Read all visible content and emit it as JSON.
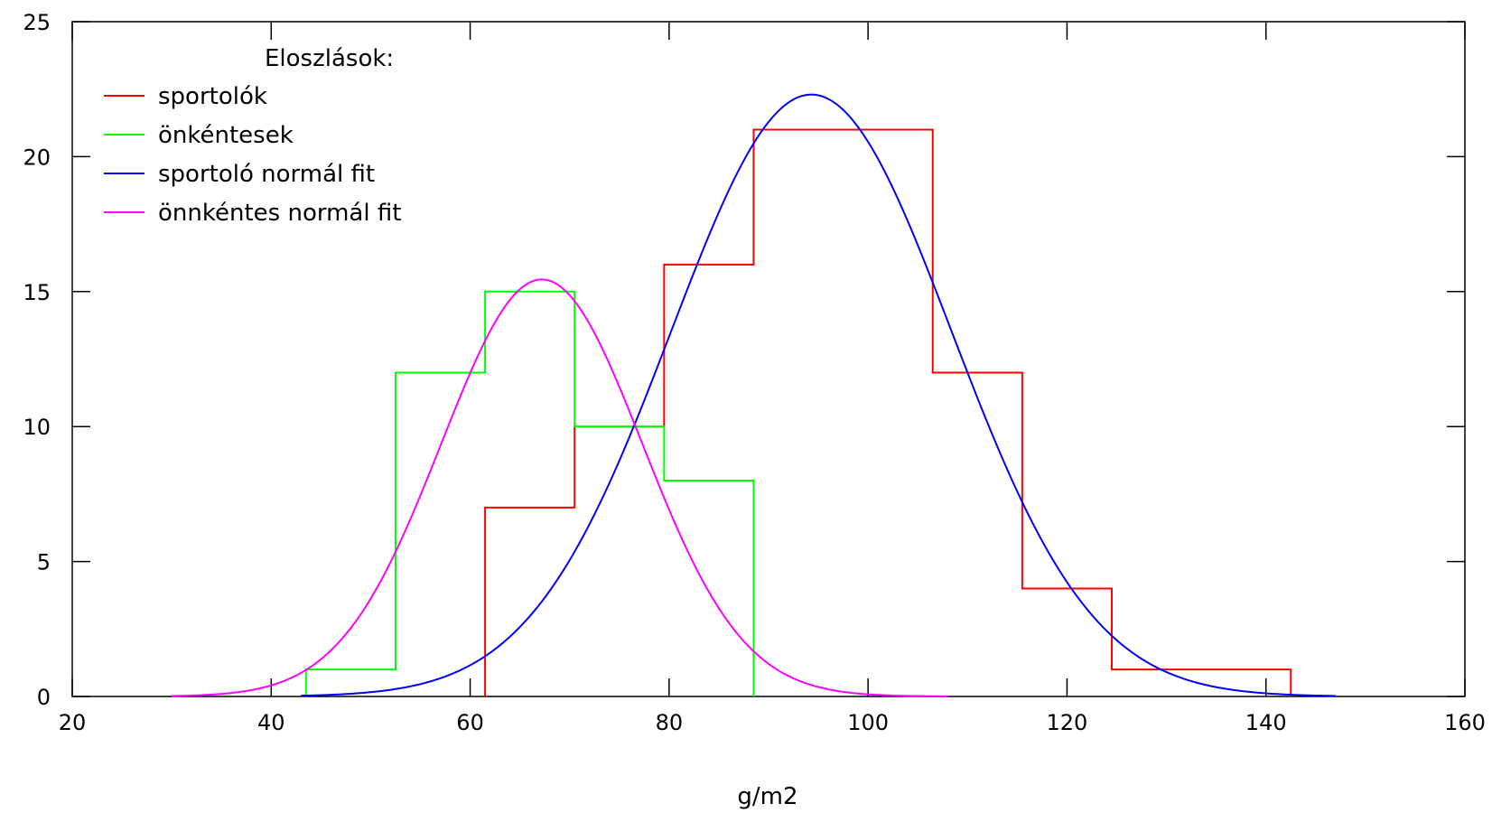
{
  "chart_data": {
    "type": "line",
    "title": "",
    "xlabel": "g/m2",
    "ylabel": "",
    "xlim": [
      20,
      160
    ],
    "ylim": [
      0,
      25
    ],
    "xticks": [
      20,
      40,
      60,
      80,
      100,
      120,
      140,
      160
    ],
    "yticks": [
      0,
      5,
      10,
      15,
      20,
      25
    ],
    "grid": false,
    "legend": {
      "title": "Eloszlások:",
      "placement": "top-left"
    },
    "series": [
      {
        "name": "sportolók",
        "kind": "step-histogram",
        "color": "#ff0000",
        "edges": [
          61.5,
          70.5,
          79.5,
          88.5,
          106.5,
          115.5,
          124.5,
          142.5
        ],
        "counts": [
          7,
          10,
          16,
          21,
          12,
          4,
          1
        ]
      },
      {
        "name": "önkéntesek",
        "kind": "step-histogram",
        "color": "#00ff00",
        "edges": [
          43.5,
          52.5,
          61.5,
          70.5,
          79.5,
          88.5
        ],
        "counts": [
          1,
          12,
          15,
          10,
          8
        ]
      },
      {
        "name": "sportoló normál fit",
        "kind": "gaussian",
        "color": "#0000ff",
        "amplitude": 22.3,
        "mean": 94.3,
        "sigma": 14.1,
        "x_range": [
          43,
          147
        ]
      },
      {
        "name": "önnkéntes normál fit",
        "kind": "gaussian",
        "color": "#ff00ff",
        "amplitude": 15.45,
        "mean": 67.2,
        "sigma": 10.1,
        "x_range": [
          30,
          108
        ]
      }
    ]
  }
}
